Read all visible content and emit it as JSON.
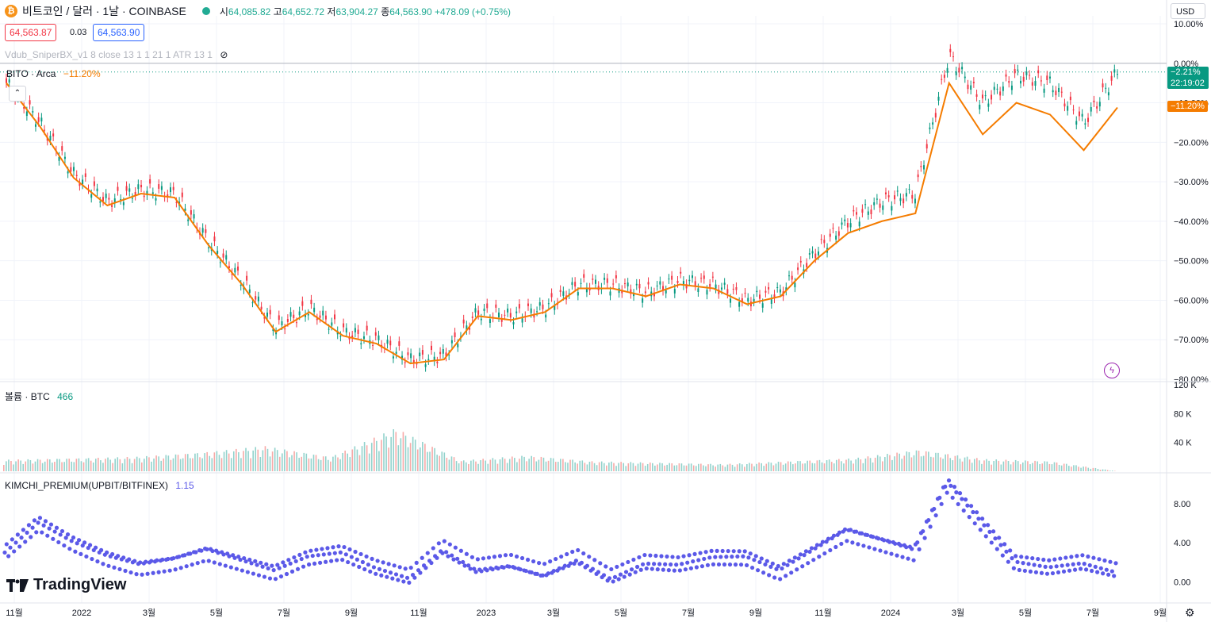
{
  "header": {
    "symbol_name": "비트코인 / 달러 · 1날 · COINBASE",
    "open_label": "시",
    "open": "64,085.82",
    "high_label": "고",
    "high": "64,652.72",
    "low_label": "저",
    "low": "63,904.27",
    "close_label": "종",
    "close": "64,563.90",
    "change": "+478.09 (+0.75%)"
  },
  "quote": {
    "sell": "64,563.87",
    "spread": "0.03",
    "buy": "64,563.90"
  },
  "indicators": {
    "vdub": "Vdub_SniperBX_v1 8 close 13 1 1 21 1 ATR 13 1",
    "compare_symbol": "BITO · Arca",
    "compare_value": "−11.20%",
    "volume_label": "볼륨 · BTC",
    "volume_value": "466",
    "kimchi_label": "KIMCHI_PREMIUM(UPBIT/BITFINEX)",
    "kimchi_value": "1.15"
  },
  "toolbar": {
    "currency": "USD"
  },
  "price_tags": {
    "btc_pct": "−2.21%",
    "countdown": "22:19:02",
    "bito_pct": "−11.20%"
  },
  "brand": {
    "name": "TradingView"
  },
  "icons": {
    "logo": "bitcoin-logo-icon",
    "visibility": "eye-off-icon",
    "collapse": "chevron-up-icon",
    "flash": "lightning-icon",
    "settings": "gear-icon"
  },
  "colors": {
    "up": "#089981",
    "down": "#f23645",
    "compare": "#f57c00",
    "kimchi": "#5b59e8",
    "grid": "#f0f3fa"
  },
  "chart_data": [
    {
      "type": "line",
      "title": "비트코인 / 달러 · 1날 · COINBASE",
      "y_unit": "%",
      "ylim": [
        -80,
        10
      ],
      "yticks": [
        "10.00%",
        "0.00%",
        "−10.00%",
        "−20.00%",
        "−30.00%",
        "−40.00%",
        "−50.00%",
        "−60.00%",
        "−70.00%",
        "−80.00%"
      ],
      "xticks": [
        "11월",
        "2022",
        "3월",
        "5월",
        "7월",
        "9월",
        "11월",
        "2023",
        "3월",
        "5월",
        "7월",
        "9월",
        "11월",
        "2024",
        "3월",
        "5월",
        "7월",
        "9월"
      ],
      "x": [
        "2021-11",
        "2021-12",
        "2022-01",
        "2022-02",
        "2022-03",
        "2022-04",
        "2022-05",
        "2022-06",
        "2022-07",
        "2022-08",
        "2022-09",
        "2022-10",
        "2022-11",
        "2022-12",
        "2023-01",
        "2023-02",
        "2023-03",
        "2023-04",
        "2023-05",
        "2023-06",
        "2023-07",
        "2023-08",
        "2023-09",
        "2023-10",
        "2023-11",
        "2023-12",
        "2024-01",
        "2024-02",
        "2024-03",
        "2024-04",
        "2024-05",
        "2024-06",
        "2024-07",
        "2024-08"
      ],
      "series": [
        {
          "name": "BTCUSD",
          "values": [
            -5,
            -15,
            -28,
            -35,
            -32,
            -33,
            -45,
            -55,
            -67,
            -62,
            -68,
            -70,
            -75,
            -74,
            -63,
            -64,
            -62,
            -56,
            -56,
            -58,
            -55,
            -56,
            -60,
            -58,
            -48,
            -40,
            -35,
            -33,
            2,
            -10,
            -3,
            -5,
            -15,
            -2.21
          ]
        },
        {
          "name": "BITO · Arca",
          "values": [
            -5,
            -16,
            -29,
            -36,
            -33,
            -34,
            -46,
            -56,
            -68,
            -63,
            -69,
            -71,
            -76,
            -75,
            -64,
            -65,
            -63,
            -57,
            -57,
            -59,
            -56,
            -57,
            -61,
            -59,
            -50,
            -43,
            -40,
            -38,
            -5,
            -18,
            -10,
            -13,
            -22,
            -11.2
          ]
        }
      ]
    },
    {
      "type": "bar",
      "title": "볼륨 · BTC",
      "yticks": [
        "120 K",
        "80 K",
        "40 K"
      ],
      "ylim": [
        0,
        120000
      ],
      "x": [
        "2021-11",
        "2022-01",
        "2022-03",
        "2022-05",
        "2022-07",
        "2022-09",
        "2022-11",
        "2023-01",
        "2023-03",
        "2023-05",
        "2023-07",
        "2023-09",
        "2023-11",
        "2024-01",
        "2024-03",
        "2024-05",
        "2024-07",
        "2024-08"
      ],
      "values": [
        16000,
        18000,
        20000,
        26000,
        35000,
        20000,
        60000,
        15000,
        22000,
        14000,
        12000,
        10000,
        14000,
        18000,
        30000,
        17000,
        14000,
        466
      ]
    },
    {
      "type": "scatter",
      "title": "KIMCHI_PREMIUM(UPBIT/BITFINEX)",
      "ylim": [
        -2,
        11
      ],
      "yticks": [
        "8.00",
        "4.00",
        "0.00"
      ],
      "x": [
        "2021-11",
        "2021-12",
        "2022-01",
        "2022-02",
        "2022-03",
        "2022-04",
        "2022-05",
        "2022-06",
        "2022-07",
        "2022-08",
        "2022-09",
        "2022-10",
        "2022-11",
        "2022-12",
        "2023-01",
        "2023-02",
        "2023-03",
        "2023-04",
        "2023-05",
        "2023-06",
        "2023-07",
        "2023-08",
        "2023-09",
        "2023-10",
        "2023-11",
        "2023-12",
        "2024-01",
        "2024-02",
        "2024-03",
        "2024-04",
        "2024-05",
        "2024-06",
        "2024-07",
        "2024-08"
      ],
      "values": [
        3,
        6,
        4,
        2.5,
        1.5,
        2,
        3,
        2,
        1,
        2.5,
        3,
        1.5,
        0.5,
        3.5,
        1.5,
        2,
        1,
        2.5,
        0.5,
        2,
        1.8,
        2.5,
        2.5,
        1,
        3,
        5,
        4,
        3,
        10,
        6,
        2,
        1.5,
        2,
        1.15
      ]
    }
  ]
}
